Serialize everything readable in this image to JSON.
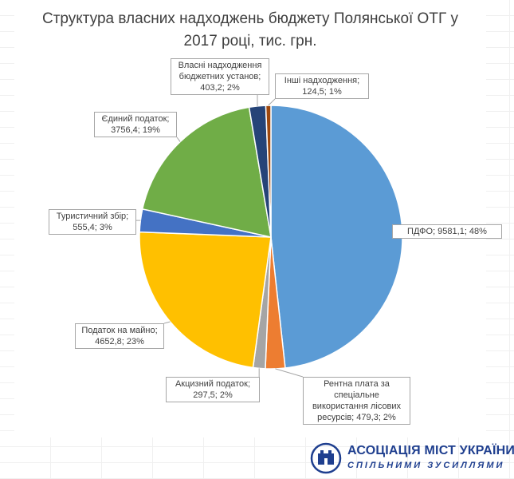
{
  "chart_data": {
    "type": "pie",
    "title": "Структура власних надходжень бюджету Полянської ОТГ у 2017 році, тис. грн.",
    "slices": [
      {
        "name": "ПДФО",
        "value": 9581.1,
        "percent": 48,
        "color": "#5b9bd5",
        "label": [
          "ПДФО; 9581,1; 48%"
        ]
      },
      {
        "name": "Рентна плата за спеціальне використання лісових ресурсів",
        "value": 479.3,
        "percent": 2,
        "color": "#ed7d31",
        "label": [
          "Рентна плата за",
          "спеціальне",
          "використання лісових",
          "ресурсів; 479,3; 2%"
        ]
      },
      {
        "name": "Акцизний податок",
        "value": 297.5,
        "percent": 2,
        "color": "#a5a5a5",
        "label": [
          "Акцизний податок;",
          "297,5; 2%"
        ]
      },
      {
        "name": "Податок на майно",
        "value": 4652.8,
        "percent": 23,
        "color": "#ffc000",
        "label": [
          "Податок на майно;",
          "4652,8; 23%"
        ]
      },
      {
        "name": "Туристичний збір",
        "value": 555.4,
        "percent": 3,
        "color": "#4472c4",
        "label": [
          "Туристичний збір;",
          "555,4; 3%"
        ]
      },
      {
        "name": "Єдиний податок",
        "value": 3756.4,
        "percent": 19,
        "color": "#70ad47",
        "label": [
          "Єдиний податок;",
          "3756,4; 19%"
        ]
      },
      {
        "name": "Власні надходження бюджетних установ",
        "value": 403.2,
        "percent": 2,
        "color": "#264478",
        "label": [
          "Власні надходження",
          "бюджетних установ;",
          "403,2; 2%"
        ]
      },
      {
        "name": "Інші надходження",
        "value": 124.5,
        "percent": 1,
        "color": "#9e480e",
        "label": [
          "Інші надходження;",
          "124,5; 1%"
        ]
      }
    ]
  },
  "logo": {
    "title": "АСОЦІАЦІЯ МІСТ УКРАЇНИ",
    "subtitle": "СПІЛЬНИМИ ЗУСИЛЛЯМИ"
  }
}
